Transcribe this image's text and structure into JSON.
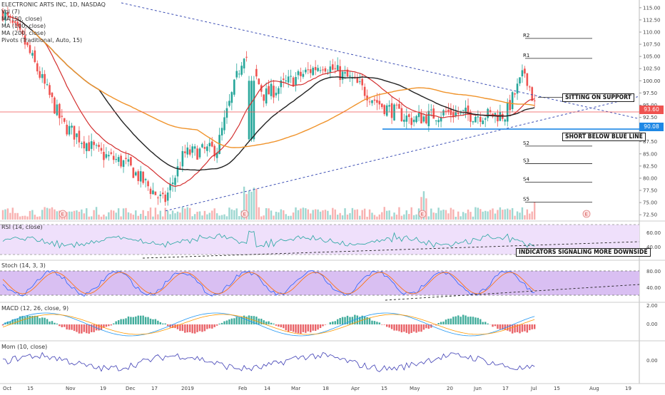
{
  "legend": {
    "title": "ELECTRONIC ARTS INC, 1D, NASDAQ",
    "vol": "Vol (7)",
    "ma50": "MA (50, close)",
    "ma100": "MA (100, close)",
    "ma200": "MA (200, close)",
    "pivots": "Pivots (Traditional, Auto, 15)"
  },
  "panels": {
    "rsi": "RSI (14, close)",
    "stoch": "Stoch (14, 3, 3)",
    "macd": "MACD (12, 26, close, 9)",
    "mom": "Mom (10, close)"
  },
  "annotations": {
    "support": "SITTING ON SUPPORT",
    "short": "SHORT BELOW BLUE LINE",
    "indicators": "INDICATORS SIGNALING MORE DOWNSIDE"
  },
  "price_tags": {
    "last": "93.60",
    "blue_line": "90.08"
  },
  "pivots": [
    {
      "label": "R2",
      "value": 108.7
    },
    {
      "label": "R1",
      "value": 104.6
    },
    {
      "label": "S2",
      "value": 86.6
    },
    {
      "label": "S3",
      "value": 83.0
    },
    {
      "label": "S4",
      "value": 79.2
    },
    {
      "label": "S5",
      "value": 75.1
    }
  ],
  "earnings_marker": "E",
  "colors": {
    "up": "#26a69a",
    "down": "#ef5350",
    "ma50": "#d32f2f",
    "ma100": "#222222",
    "ma200": "#f0932b",
    "trend": "#3f51b5",
    "support": "#1e88e5",
    "indicator_bg": "#efe0fb",
    "stoch_k": "#2962ff",
    "stoch_d": "#ff6d00",
    "mom": "#3f3fb5"
  },
  "chart_data": {
    "type": "candlestick",
    "price_axis": {
      "ticks": [
        "115.00",
        "112.50",
        "110.00",
        "107.50",
        "105.00",
        "102.50",
        "100.00",
        "97.50",
        "95.00",
        "92.50",
        "90.00",
        "87.50",
        "85.00",
        "82.50",
        "80.00",
        "77.50",
        "75.00",
        "72.50"
      ],
      "range": [
        71.5,
        116.0
      ]
    },
    "x_axis_labels": [
      "Oct",
      "15",
      "Nov",
      "19",
      "Dec",
      "17",
      "2019",
      "Feb",
      "14",
      "Mar",
      "18",
      "Apr",
      "15",
      "May",
      "20",
      "Jun",
      "17",
      "Jul",
      "15",
      "Aug",
      "19"
    ],
    "indicator_axes": {
      "rsi": [
        "60.00",
        "40.00"
      ],
      "stoch": [
        "80.00",
        "40.00"
      ],
      "macd": [
        "2.00",
        "0.00"
      ],
      "mom": [
        "0.00"
      ]
    },
    "waypoints": [
      {
        "x": "Oct 1",
        "close": 114.0
      },
      {
        "x": "Oct 15",
        "close": 108.0
      },
      {
        "x": "Nov 1",
        "close": 91.0
      },
      {
        "x": "Nov 19",
        "close": 85.0
      },
      {
        "x": "Dec 3",
        "close": 83.0
      },
      {
        "x": "Dec 24",
        "close": 75.0
      },
      {
        "x": "Jan 15",
        "close": 85.0
      },
      {
        "x": "Feb 5",
        "close": 86.0
      },
      {
        "x": "Feb 14",
        "close": 106.0
      },
      {
        "x": "Mar 1",
        "close": 97.0
      },
      {
        "x": "Mar 18",
        "close": 103.5
      },
      {
        "x": "Apr 5",
        "close": 100.0
      },
      {
        "x": "Apr 15",
        "close": 95.0
      },
      {
        "x": "May 1",
        "close": 92.0
      },
      {
        "x": "May 20",
        "close": 93.5
      },
      {
        "x": "Jun 3",
        "close": 93.0
      },
      {
        "x": "Jun 20",
        "close": 93.0
      },
      {
        "x": "Jul 3",
        "close": 102.0
      },
      {
        "x": "Jul 10",
        "close": 93.6
      }
    ],
    "support_line": 90.08,
    "last_price": 93.6
  }
}
